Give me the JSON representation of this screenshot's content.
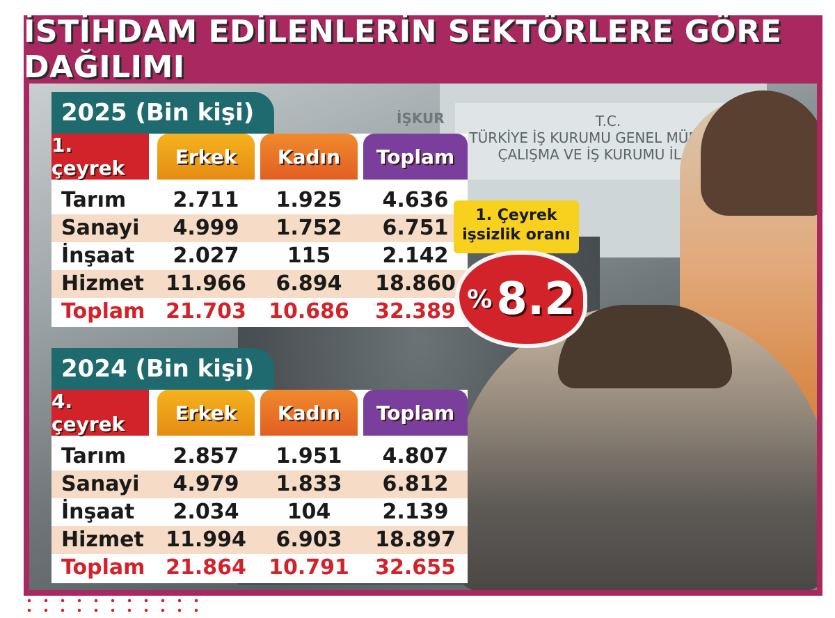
{
  "title": "İSTİHDAM EDİLENLERİN SEKTÖRLERE GÖRE DAĞILIMI",
  "background": {
    "sign_iskur": "İŞKUR",
    "sign_line1": "T.C.",
    "sign_line2": "TÜRKİYE İŞ KURUMU GENEL MÜDÜRLÜĞ",
    "sign_line3": "ÇALIŞMA VE İŞ KURUMU İL MÜD"
  },
  "colors": {
    "frame": "#a8285f",
    "teal": "#1f6a6e",
    "red": "#d2232a",
    "erkek": "#f6b21e",
    "kadin": "#e25f22",
    "toplam": "#7a3f9d",
    "badge": "#f7d11e"
  },
  "badge": {
    "label_line1": "1. Çeyrek",
    "label_line2": "işsizlik oranı",
    "percent_sign": "%",
    "value": "8.2"
  },
  "chart_data": [
    {
      "type": "table",
      "title": "2025 (Bin kişi)",
      "period": "1. çeyrek",
      "columns": [
        "Erkek",
        "Kadın",
        "Toplam"
      ],
      "rows": [
        {
          "label": "Tarım",
          "values": [
            "2.711",
            "1.925",
            "4.636"
          ]
        },
        {
          "label": "Sanayi",
          "values": [
            "4.999",
            "1.752",
            "6.751"
          ]
        },
        {
          "label": "İnşaat",
          "values": [
            "2.027",
            "115",
            "2.142"
          ]
        },
        {
          "label": "Hizmet",
          "values": [
            "11.966",
            "6.894",
            "18.860"
          ]
        },
        {
          "label": "Toplam",
          "values": [
            "21.703",
            "10.686",
            "32.389"
          ]
        }
      ]
    },
    {
      "type": "table",
      "title": "2024 (Bin kişi)",
      "period": "4. çeyrek",
      "columns": [
        "Erkek",
        "Kadın",
        "Toplam"
      ],
      "rows": [
        {
          "label": "Tarım",
          "values": [
            "2.857",
            "1.951",
            "4.807"
          ]
        },
        {
          "label": "Sanayi",
          "values": [
            "4.979",
            "1.833",
            "6.812"
          ]
        },
        {
          "label": "İnşaat",
          "values": [
            "2.034",
            "104",
            "2.139"
          ]
        },
        {
          "label": "Hizmet",
          "values": [
            "11.994",
            "6.903",
            "18.897"
          ]
        },
        {
          "label": "Toplam",
          "values": [
            "21.864",
            "10.791",
            "32.655"
          ]
        }
      ]
    }
  ]
}
